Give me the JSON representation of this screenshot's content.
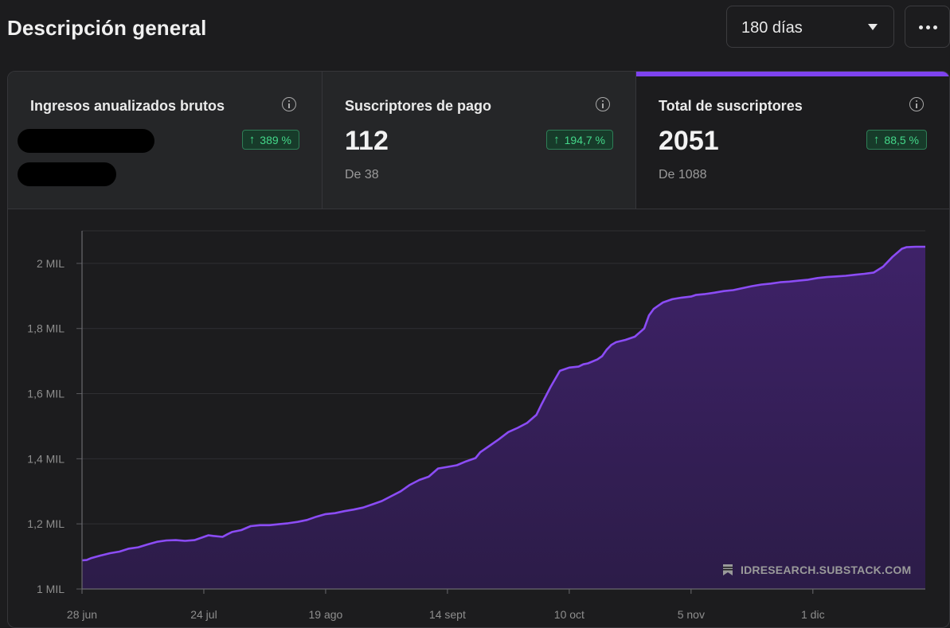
{
  "header": {
    "title": "Descripción general",
    "range_value": "180 días"
  },
  "cards": [
    {
      "label": "Ingresos anualizados brutos",
      "badge": "389 %",
      "value": "",
      "sub": ""
    },
    {
      "label": "Suscriptores de pago",
      "badge": "194,7 %",
      "value": "112",
      "sub": "De 38"
    },
    {
      "label": "Total de suscriptores",
      "badge": "88,5 %",
      "value": "2051",
      "sub": "De 1088"
    }
  ],
  "watermark": "IDRESEARCH.SUBSTACK.COM",
  "colors": {
    "line": "#8b4cf5",
    "fill": "#3a2160",
    "badge_text": "#44d88a"
  },
  "chart_data": {
    "type": "area",
    "title": "Total de suscriptores",
    "xlabel": "",
    "ylabel": "",
    "ylim": [
      1000,
      2100
    ],
    "yticks": [
      1000,
      1200,
      1400,
      1600,
      1800,
      2000
    ],
    "ytick_labels": [
      "1 MIL",
      "1,2 MIL",
      "1,4 MIL",
      "1,6 MIL",
      "1,8 MIL",
      "2 MIL"
    ],
    "xrange_days": [
      0,
      180
    ],
    "xticks_day": [
      0,
      26,
      52,
      78,
      104,
      130,
      156
    ],
    "xtick_labels": [
      "28 jun",
      "24 jul",
      "19 ago",
      "14 sept",
      "10 oct",
      "5 nov",
      "1 dic"
    ],
    "series": [
      {
        "name": "Total de suscriptores",
        "x": [
          0,
          1,
          2,
          4,
          6,
          8,
          10,
          12,
          14,
          16,
          18,
          20,
          22,
          24,
          26,
          27,
          28,
          30,
          31,
          32,
          34,
          36,
          38,
          40,
          42,
          44,
          46,
          48,
          50,
          52,
          54,
          56,
          58,
          60,
          62,
          64,
          66,
          68,
          70,
          72,
          74,
          76,
          78,
          80,
          82,
          84,
          85,
          87,
          89,
          91,
          93,
          95,
          97,
          98,
          100,
          102,
          104,
          106,
          107,
          108,
          110,
          111,
          112,
          113,
          114,
          116,
          118,
          120,
          121,
          122,
          123,
          124,
          126,
          128,
          130,
          131,
          133,
          135,
          137,
          139,
          141,
          143,
          145,
          147,
          149,
          151,
          153,
          155,
          157,
          159,
          161,
          163,
          165,
          167,
          169,
          171,
          173,
          175,
          176,
          178,
          180
        ],
        "values": [
          1088,
          1089,
          1095,
          1103,
          1110,
          1115,
          1124,
          1128,
          1137,
          1145,
          1149,
          1150,
          1148,
          1150,
          1160,
          1165,
          1163,
          1160,
          1168,
          1175,
          1181,
          1193,
          1196,
          1196,
          1199,
          1202,
          1206,
          1212,
          1222,
          1230,
          1233,
          1239,
          1244,
          1250,
          1260,
          1270,
          1285,
          1300,
          1320,
          1335,
          1345,
          1370,
          1375,
          1380,
          1392,
          1402,
          1420,
          1440,
          1460,
          1482,
          1495,
          1510,
          1535,
          1565,
          1620,
          1670,
          1680,
          1683,
          1690,
          1693,
          1705,
          1715,
          1735,
          1750,
          1758,
          1765,
          1775,
          1800,
          1840,
          1860,
          1870,
          1880,
          1890,
          1895,
          1898,
          1903,
          1906,
          1910,
          1915,
          1918,
          1924,
          1930,
          1935,
          1938,
          1942,
          1944,
          1947,
          1950,
          1955,
          1958,
          1960,
          1962,
          1965,
          1968,
          1972,
          1990,
          2020,
          2045,
          2050,
          2051,
          2051
        ]
      }
    ]
  }
}
